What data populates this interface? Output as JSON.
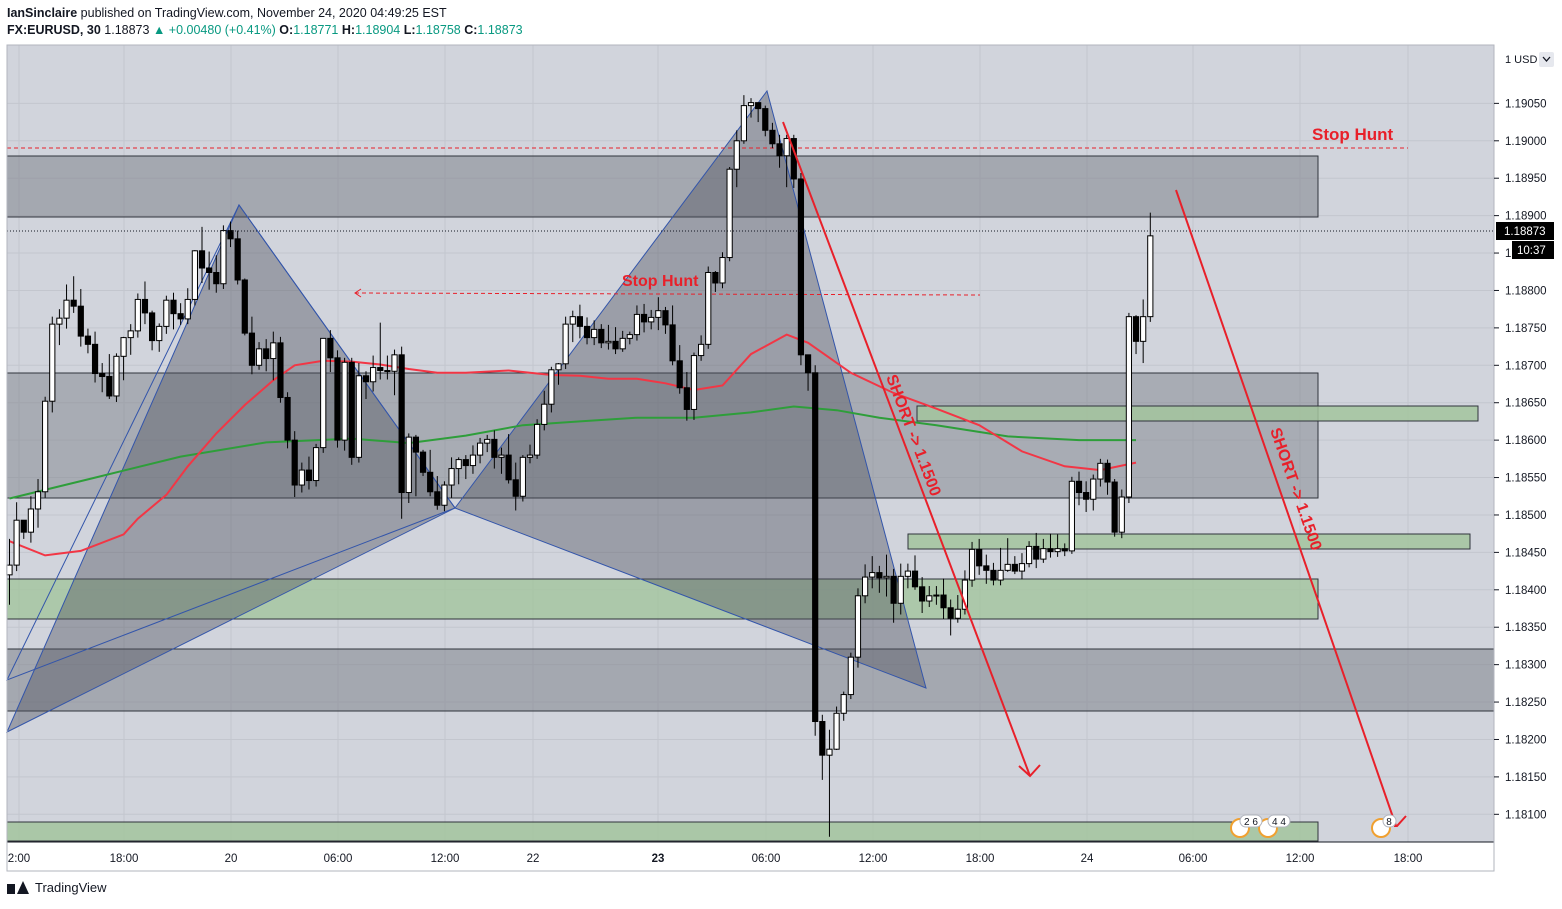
{
  "header": {
    "author": "IanSinclaire",
    "published_text": "published on TradingView.com, November 24, 2020 04:49:25 EST",
    "symbol": "FX:EURUSD, 30",
    "last": "1.18873",
    "change": "▲ +0.00480 (+0.41%)",
    "o_label": "O:",
    "o_value": "1.18771",
    "h_label": "H:",
    "h_value": "1.18904",
    "l_label": "L:",
    "l_value": "1.18758",
    "c_label": "C:",
    "c_value": "1.18873"
  },
  "footer": {
    "brand": "TradingView"
  },
  "colors": {
    "background": "#d1d4dc",
    "bull_candle": "#ffffff",
    "bear_candle": "#000000",
    "ema_red": "#f23645",
    "ema_green": "#2e9e3a",
    "supply_zone": "#7f838c",
    "demand_zone": "#a3c49d",
    "harmonic": "#6a6d78",
    "annotation_red": "#e8202a"
  },
  "chart_data": {
    "type": "candlestick",
    "title": "",
    "currency_label": "1 USD",
    "x_ticks": [
      "2:00",
      "18:00",
      "20",
      "06:00",
      "12:00",
      "22",
      "23",
      "06:00",
      "12:00",
      "18:00",
      "24",
      "06:00",
      "12:00",
      "18:00"
    ],
    "y_ticks": [
      "1.19050",
      "1.19000",
      "1.18950",
      "1.18900",
      "1.18850",
      "1.18800",
      "1.18750",
      "1.18700",
      "1.18650",
      "1.18600",
      "1.18550",
      "1.18500",
      "1.18450",
      "1.18400",
      "1.18350",
      "1.18300",
      "1.18250",
      "1.18200",
      "1.18150",
      "1.18100"
    ],
    "ylim": [
      1.18063,
      1.19128
    ],
    "last_price": "1.18873",
    "countdown": "10:37",
    "annotations": {
      "stop_hunt_1": "Stop Hunt",
      "stop_hunt_2": "Stop Hunt",
      "short_1": "SHORT -> 1.1500",
      "short_2": "SHORT -> 1.1500",
      "event_1": "2 6",
      "event_2": "4 4",
      "event_3": "8"
    },
    "ohlc": [
      [
        1.1842,
        1.18468,
        1.1838,
        1.18433
      ],
      [
        1.18433,
        1.18517,
        1.18425,
        1.18493
      ],
      [
        1.18493,
        1.18493,
        1.18468,
        1.18477
      ],
      [
        1.18477,
        1.18525,
        1.18463,
        1.18508
      ],
      [
        1.18508,
        1.18548,
        1.18483,
        1.18531
      ],
      [
        1.18531,
        1.18658,
        1.18523,
        1.18652
      ],
      [
        1.18652,
        1.18765,
        1.18637,
        1.18755
      ],
      [
        1.18755,
        1.18775,
        1.18727,
        1.18763
      ],
      [
        1.18763,
        1.18808,
        1.18749,
        1.18787
      ],
      [
        1.18787,
        1.18819,
        1.1877,
        1.18779
      ],
      [
        1.18779,
        1.18802,
        1.18725,
        1.18739
      ],
      [
        1.18739,
        1.18749,
        1.18716,
        1.18728
      ],
      [
        1.18728,
        1.18745,
        1.18677,
        1.18689
      ],
      [
        1.18689,
        1.18703,
        1.18664,
        1.18685
      ],
      [
        1.18685,
        1.18715,
        1.18655,
        1.18659
      ],
      [
        1.18659,
        1.18716,
        1.18651,
        1.18712
      ],
      [
        1.18712,
        1.18738,
        1.1868,
        1.18737
      ],
      [
        1.18737,
        1.18755,
        1.18714,
        1.18746
      ],
      [
        1.18746,
        1.18796,
        1.18737,
        1.18788
      ],
      [
        1.18788,
        1.18812,
        1.18755,
        1.1877
      ],
      [
        1.1877,
        1.18773,
        1.1872,
        1.18733
      ],
      [
        1.18733,
        1.18756,
        1.18718,
        1.18752
      ],
      [
        1.18752,
        1.18793,
        1.18742,
        1.18787
      ],
      [
        1.18787,
        1.18797,
        1.18748,
        1.18769
      ],
      [
        1.18769,
        1.18783,
        1.18754,
        1.18762
      ],
      [
        1.18762,
        1.18803,
        1.18755,
        1.18788
      ],
      [
        1.18788,
        1.18854,
        1.1878,
        1.18853
      ],
      [
        1.18853,
        1.18885,
        1.1881,
        1.1883
      ],
      [
        1.1883,
        1.18852,
        1.18801,
        1.18824
      ],
      [
        1.18824,
        1.18847,
        1.18797,
        1.18809
      ],
      [
        1.18809,
        1.18887,
        1.18802,
        1.1888
      ],
      [
        1.1888,
        1.18892,
        1.18858,
        1.18869
      ],
      [
        1.18869,
        1.1888,
        1.18808,
        1.18814
      ],
      [
        1.18814,
        1.18816,
        1.1874,
        1.18743
      ],
      [
        1.18743,
        1.18765,
        1.18688,
        1.187
      ],
      [
        1.187,
        1.18731,
        1.18694,
        1.18722
      ],
      [
        1.18722,
        1.18735,
        1.18692,
        1.18709
      ],
      [
        1.18709,
        1.18745,
        1.1868,
        1.1873
      ],
      [
        1.1873,
        1.18738,
        1.1865,
        1.18657
      ],
      [
        1.18657,
        1.18664,
        1.18589,
        1.186
      ],
      [
        1.186,
        1.18612,
        1.18524,
        1.1854
      ],
      [
        1.1854,
        1.1857,
        1.1853,
        1.1856
      ],
      [
        1.1856,
        1.18578,
        1.18534,
        1.18546
      ],
      [
        1.18546,
        1.18595,
        1.18538,
        1.1859
      ],
      [
        1.1859,
        1.18736,
        1.18583,
        1.18736
      ],
      [
        1.18736,
        1.18747,
        1.18691,
        1.1871
      ],
      [
        1.1871,
        1.1872,
        1.1859,
        1.186
      ],
      [
        1.186,
        1.1871,
        1.18586,
        1.18704
      ],
      [
        1.18704,
        1.1871,
        1.18567,
        1.18577
      ],
      [
        1.18577,
        1.18703,
        1.1857,
        1.18686
      ],
      [
        1.18686,
        1.18692,
        1.18655,
        1.18678
      ],
      [
        1.18678,
        1.18713,
        1.18665,
        1.18697
      ],
      [
        1.18697,
        1.18757,
        1.18681,
        1.18693
      ],
      [
        1.18693,
        1.18713,
        1.18681,
        1.18692
      ],
      [
        1.18692,
        1.18721,
        1.1866,
        1.18714
      ],
      [
        1.18714,
        1.18725,
        1.18495,
        1.1853
      ],
      [
        1.1853,
        1.18609,
        1.18516,
        1.18604
      ],
      [
        1.18604,
        1.18607,
        1.18525,
        1.18584
      ],
      [
        1.18584,
        1.18587,
        1.18552,
        1.18557
      ],
      [
        1.18557,
        1.18587,
        1.18525,
        1.18531
      ],
      [
        1.18531,
        1.18552,
        1.18507,
        1.18513
      ],
      [
        1.18513,
        1.18545,
        1.18505,
        1.1854
      ],
      [
        1.1854,
        1.18577,
        1.18523,
        1.18562
      ],
      [
        1.18562,
        1.18577,
        1.18541,
        1.18574
      ],
      [
        1.18574,
        1.1858,
        1.18548,
        1.18566
      ],
      [
        1.18566,
        1.18593,
        1.18555,
        1.1858
      ],
      [
        1.1858,
        1.18603,
        1.18569,
        1.18596
      ],
      [
        1.18596,
        1.18607,
        1.18584,
        1.18601
      ],
      [
        1.18601,
        1.18613,
        1.18562,
        1.18577
      ],
      [
        1.18577,
        1.1859,
        1.18555,
        1.1858
      ],
      [
        1.1858,
        1.18608,
        1.18542,
        1.18547
      ],
      [
        1.18547,
        1.1857,
        1.18506,
        1.18525
      ],
      [
        1.18525,
        1.1858,
        1.18518,
        1.18577
      ],
      [
        1.18577,
        1.18594,
        1.18569,
        1.1858
      ],
      [
        1.1858,
        1.18628,
        1.18575,
        1.18621
      ],
      [
        1.18621,
        1.18666,
        1.18613,
        1.18648
      ],
      [
        1.18648,
        1.18698,
        1.18637,
        1.18694
      ],
      [
        1.18694,
        1.18703,
        1.18674,
        1.18702
      ],
      [
        1.18702,
        1.18765,
        1.18695,
        1.18755
      ],
      [
        1.18755,
        1.18773,
        1.18731,
        1.18765
      ],
      [
        1.18765,
        1.18781,
        1.18736,
        1.18752
      ],
      [
        1.18752,
        1.18764,
        1.18728,
        1.18737
      ],
      [
        1.18737,
        1.1876,
        1.18727,
        1.18748
      ],
      [
        1.18748,
        1.18755,
        1.18723,
        1.1873
      ],
      [
        1.1873,
        1.18754,
        1.18721,
        1.18732
      ],
      [
        1.18732,
        1.18751,
        1.18715,
        1.18722
      ],
      [
        1.18722,
        1.18746,
        1.18718,
        1.18736
      ],
      [
        1.18736,
        1.18745,
        1.18728,
        1.18741
      ],
      [
        1.18741,
        1.1878,
        1.18733,
        1.18768
      ],
      [
        1.18768,
        1.18782,
        1.18744,
        1.18758
      ],
      [
        1.18758,
        1.18774,
        1.18748,
        1.18764
      ],
      [
        1.18764,
        1.18791,
        1.18747,
        1.18773
      ],
      [
        1.18773,
        1.18778,
        1.18742,
        1.18754
      ],
      [
        1.18754,
        1.1878,
        1.187,
        1.18706
      ],
      [
        1.18706,
        1.18727,
        1.18662,
        1.1867
      ],
      [
        1.1867,
        1.18691,
        1.18626,
        1.18641
      ],
      [
        1.18641,
        1.18717,
        1.18627,
        1.18713
      ],
      [
        1.18713,
        1.1874,
        1.18706,
        1.18728
      ],
      [
        1.18728,
        1.18832,
        1.18722,
        1.18824
      ],
      [
        1.18824,
        1.18826,
        1.18798,
        1.1881
      ],
      [
        1.1881,
        1.18851,
        1.18803,
        1.18844
      ],
      [
        1.18844,
        1.18965,
        1.18839,
        1.18962
      ],
      [
        1.18962,
        1.19014,
        1.18938,
        1.19
      ],
      [
        1.19,
        1.19061,
        1.18996,
        1.19047
      ],
      [
        1.19047,
        1.19057,
        1.19031,
        1.19051
      ],
      [
        1.19051,
        1.1905,
        1.19025,
        1.19043
      ],
      [
        1.19043,
        1.19047,
        1.19006,
        1.19014
      ],
      [
        1.19014,
        1.19024,
        1.1899,
        1.18996
      ],
      [
        1.18996,
        1.19008,
        1.18964,
        1.1898
      ],
      [
        1.1898,
        1.19008,
        1.18938,
        1.19003
      ],
      [
        1.19003,
        1.19008,
        1.18937,
        1.18949
      ],
      [
        1.18949,
        1.18957,
        1.187,
        1.18714
      ],
      [
        1.18714,
        1.18708,
        1.18666,
        1.1869
      ],
      [
        1.1869,
        1.187,
        1.18205,
        1.18224
      ],
      [
        1.18224,
        1.18233,
        1.18146,
        1.18179
      ],
      [
        1.18179,
        1.18213,
        1.1807,
        1.18187
      ],
      [
        1.18187,
        1.18244,
        1.18186,
        1.18235
      ],
      [
        1.18235,
        1.18264,
        1.18225,
        1.1826
      ],
      [
        1.1826,
        1.18316,
        1.18254,
        1.1831
      ],
      [
        1.1831,
        1.18402,
        1.18296,
        1.18392
      ],
      [
        1.18392,
        1.18434,
        1.18382,
        1.18417
      ],
      [
        1.18417,
        1.18445,
        1.18402,
        1.18423
      ],
      [
        1.18423,
        1.18432,
        1.18396,
        1.18416
      ],
      [
        1.18416,
        1.18447,
        1.18391,
        1.18418
      ],
      [
        1.18418,
        1.18428,
        1.18356,
        1.18382
      ],
      [
        1.18382,
        1.18435,
        1.18367,
        1.18418
      ],
      [
        1.18418,
        1.18435,
        1.18402,
        1.18425
      ],
      [
        1.18425,
        1.18446,
        1.184,
        1.18404
      ],
      [
        1.18404,
        1.18417,
        1.18369,
        1.18385
      ],
      [
        1.18385,
        1.18405,
        1.18377,
        1.18392
      ],
      [
        1.18392,
        1.18405,
        1.1838,
        1.18393
      ],
      [
        1.18393,
        1.18415,
        1.18361,
        1.18376
      ],
      [
        1.18376,
        1.18387,
        1.18339,
        1.18362
      ],
      [
        1.18362,
        1.18393,
        1.18356,
        1.18374
      ],
      [
        1.18374,
        1.18426,
        1.18367,
        1.18413
      ],
      [
        1.18413,
        1.18464,
        1.18404,
        1.18454
      ],
      [
        1.18454,
        1.18468,
        1.1842,
        1.18432
      ],
      [
        1.18432,
        1.18447,
        1.18408,
        1.18426
      ],
      [
        1.18426,
        1.18436,
        1.18406,
        1.18413
      ],
      [
        1.18413,
        1.18456,
        1.18406,
        1.18426
      ],
      [
        1.18426,
        1.18469,
        1.18424,
        1.18434
      ],
      [
        1.18434,
        1.18445,
        1.18421,
        1.18425
      ],
      [
        1.18425,
        1.18449,
        1.18414,
        1.18435
      ],
      [
        1.18435,
        1.18465,
        1.1843,
        1.18458
      ],
      [
        1.18458,
        1.18476,
        1.18429,
        1.18441
      ],
      [
        1.18441,
        1.18468,
        1.18436,
        1.18455
      ],
      [
        1.18455,
        1.18475,
        1.18443,
        1.18451
      ],
      [
        1.18451,
        1.18474,
        1.18444,
        1.18455
      ],
      [
        1.18455,
        1.18462,
        1.18445,
        1.18452
      ],
      [
        1.18452,
        1.18551,
        1.18448,
        1.18545
      ],
      [
        1.18545,
        1.18558,
        1.18513,
        1.1853
      ],
      [
        1.1853,
        1.18545,
        1.18504,
        1.18521
      ],
      [
        1.18521,
        1.18554,
        1.18506,
        1.18548
      ],
      [
        1.18548,
        1.18575,
        1.18538,
        1.18569
      ],
      [
        1.18569,
        1.18574,
        1.18527,
        1.18544
      ],
      [
        1.18544,
        1.18548,
        1.18471,
        1.18477
      ],
      [
        1.18477,
        1.18534,
        1.18469,
        1.18524
      ],
      [
        1.18524,
        1.1877,
        1.18516,
        1.18765
      ],
      [
        1.18765,
        1.18767,
        1.18715,
        1.18732
      ],
      [
        1.18732,
        1.18788,
        1.18703,
        1.18765
      ],
      [
        1.18765,
        1.18904,
        1.18758,
        1.18873
      ]
    ],
    "ema_red": [
      [
        0,
        1.18465
      ],
      [
        5,
        1.18446
      ],
      [
        10,
        1.18452
      ],
      [
        16,
        1.18474
      ],
      [
        18,
        1.18495
      ],
      [
        22,
        1.18527
      ],
      [
        25,
        1.18565
      ],
      [
        29,
        1.18609
      ],
      [
        33,
        1.18647
      ],
      [
        37,
        1.1868
      ],
      [
        40,
        1.187
      ],
      [
        44,
        1.18706
      ],
      [
        48,
        1.18705
      ],
      [
        52,
        1.18701
      ],
      [
        56,
        1.18695
      ],
      [
        60,
        1.1869
      ],
      [
        64,
        1.1869
      ],
      [
        70,
        1.18693
      ],
      [
        76,
        1.18687
      ],
      [
        80,
        1.18686
      ],
      [
        84,
        1.18682
      ],
      [
        88,
        1.18682
      ],
      [
        92,
        1.18676
      ],
      [
        96,
        1.18667
      ],
      [
        100,
        1.18673
      ],
      [
        104,
        1.18715
      ],
      [
        109,
        1.18741
      ],
      [
        112,
        1.1873
      ],
      [
        118,
        1.1869
      ],
      [
        124,
        1.18663
      ],
      [
        130,
        1.18642
      ],
      [
        136,
        1.1862
      ],
      [
        142,
        1.18585
      ],
      [
        148,
        1.18565
      ],
      [
        153,
        1.1856
      ],
      [
        158,
        1.1857
      ]
    ],
    "ema_green": [
      [
        0,
        1.18522
      ],
      [
        12,
        1.1855
      ],
      [
        24,
        1.18578
      ],
      [
        36,
        1.18597
      ],
      [
        48,
        1.18602
      ],
      [
        56,
        1.18596
      ],
      [
        64,
        1.18606
      ],
      [
        72,
        1.1862
      ],
      [
        80,
        1.18625
      ],
      [
        88,
        1.1863
      ],
      [
        96,
        1.1863
      ],
      [
        104,
        1.18637
      ],
      [
        110,
        1.18645
      ],
      [
        116,
        1.1864
      ],
      [
        122,
        1.1863
      ],
      [
        130,
        1.1862
      ],
      [
        140,
        1.18605
      ],
      [
        150,
        1.186
      ],
      [
        158,
        1.186
      ]
    ]
  }
}
